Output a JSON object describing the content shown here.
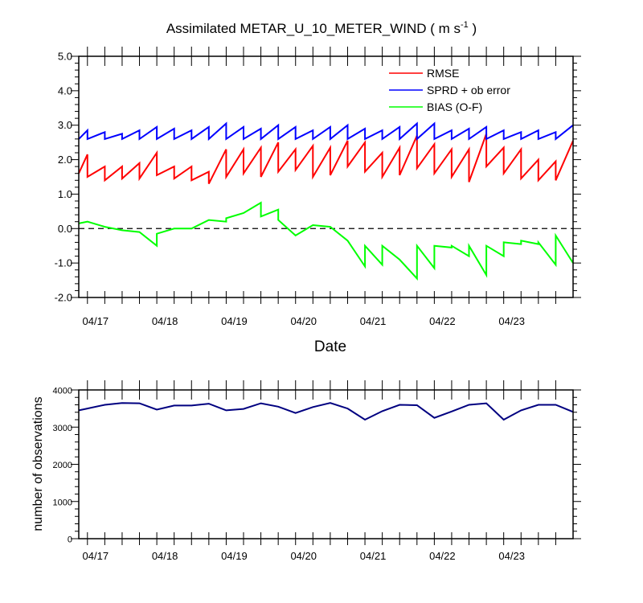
{
  "chart_data": [
    {
      "type": "line",
      "title": "Assimilated METAR_U_10_METER_WIND ( m s",
      "title_exponent": "-1",
      "title_close": " )",
      "xlabel": "Date",
      "ylabel": "",
      "ylim": [
        -2.0,
        5.0
      ],
      "yticks": [
        "5.0",
        "4.0",
        "3.0",
        "2.0",
        "1.0",
        "0.0",
        "-1.0",
        "-2.0"
      ],
      "ytick_values": [
        5,
        4,
        3,
        2,
        1,
        0,
        -1,
        -2
      ],
      "xticks": [
        "04/17",
        "04/18",
        "04/19",
        "04/20",
        "04/21",
        "04/22",
        "04/23"
      ],
      "xtick_values": [
        0,
        4,
        8,
        12,
        16,
        20,
        24
      ],
      "xlim": [
        -0.5,
        28
      ],
      "zero_line": "dashed",
      "legend_position": "top-right",
      "series": [
        {
          "name": "RMSE",
          "color": "#ff0000",
          "x": [
            -0.5,
            0,
            0,
            1,
            1,
            2,
            2,
            3,
            3,
            4,
            4,
            5,
            5,
            6,
            6,
            7,
            7,
            8,
            8,
            9,
            9,
            10,
            10,
            11,
            11,
            12,
            12,
            13,
            13,
            14,
            14,
            15,
            15,
            16,
            16,
            17,
            17,
            18,
            18,
            19,
            19,
            20,
            20,
            21,
            21,
            22,
            22,
            23,
            23,
            24,
            24,
            25,
            25,
            26,
            26,
            27,
            27,
            28
          ],
          "y": [
            1.6,
            2.15,
            1.5,
            1.8,
            1.4,
            1.8,
            1.45,
            1.9,
            1.45,
            2.2,
            1.55,
            1.8,
            1.45,
            1.8,
            1.4,
            1.65,
            1.3,
            2.3,
            1.5,
            2.3,
            1.6,
            2.35,
            1.5,
            2.5,
            1.65,
            2.3,
            1.7,
            2.4,
            1.5,
            2.35,
            1.55,
            2.55,
            1.8,
            2.5,
            1.65,
            2.2,
            1.5,
            2.35,
            1.55,
            2.7,
            1.75,
            2.45,
            1.6,
            2.3,
            1.5,
            2.3,
            1.35,
            2.75,
            1.8,
            2.35,
            1.6,
            2.3,
            1.45,
            2.0,
            1.4,
            1.95,
            1.4,
            2.55
          ]
        },
        {
          "name": "SPRD + ob error",
          "color": "#0000ff",
          "x": [
            -0.5,
            0,
            0,
            1,
            1,
            2,
            2,
            3,
            3,
            4,
            4,
            5,
            5,
            6,
            6,
            7,
            7,
            8,
            8,
            9,
            9,
            10,
            10,
            11,
            11,
            12,
            12,
            13,
            13,
            14,
            14,
            15,
            15,
            16,
            16,
            17,
            17,
            18,
            18,
            19,
            19,
            20,
            20,
            21,
            21,
            22,
            22,
            23,
            23,
            24,
            24,
            25,
            25,
            26,
            26,
            27,
            27,
            28
          ],
          "y": [
            2.6,
            2.85,
            2.6,
            2.8,
            2.6,
            2.75,
            2.6,
            2.85,
            2.6,
            2.95,
            2.6,
            2.9,
            2.6,
            2.85,
            2.6,
            2.95,
            2.6,
            3.05,
            2.6,
            2.95,
            2.6,
            2.9,
            2.6,
            3.0,
            2.6,
            2.95,
            2.6,
            2.85,
            2.6,
            2.95,
            2.6,
            3.0,
            2.6,
            2.9,
            2.6,
            2.85,
            2.6,
            2.95,
            2.6,
            3.05,
            2.6,
            3.05,
            2.6,
            2.85,
            2.6,
            2.9,
            2.6,
            2.95,
            2.6,
            2.85,
            2.6,
            2.8,
            2.6,
            2.85,
            2.6,
            2.8,
            2.6,
            3.0
          ]
        },
        {
          "name": "BIAS (O-F)",
          "color": "#00ff00",
          "x": [
            -0.5,
            0,
            1,
            2,
            3,
            4,
            4,
            5,
            6,
            7,
            8,
            8,
            9,
            10,
            10,
            11,
            11,
            12,
            13,
            14,
            15,
            16,
            16,
            17,
            17,
            18,
            19,
            19,
            20,
            20,
            21,
            21,
            22,
            22,
            23,
            23,
            24,
            24,
            25,
            25,
            26,
            26,
            27,
            27,
            28
          ],
          "y": [
            0.15,
            0.2,
            0.05,
            -0.05,
            -0.1,
            -0.5,
            -0.15,
            0.0,
            0.0,
            0.25,
            0.2,
            0.3,
            0.45,
            0.75,
            0.35,
            0.55,
            0.25,
            -0.2,
            0.1,
            0.05,
            -0.35,
            -1.1,
            -0.5,
            -1.05,
            -0.5,
            -0.9,
            -1.45,
            -0.5,
            -1.15,
            -0.5,
            -0.55,
            -0.5,
            -0.8,
            -0.5,
            -1.35,
            -0.5,
            -0.8,
            -0.4,
            -0.45,
            -0.35,
            -0.45,
            -0.4,
            -1.05,
            -0.2,
            -1.0
          ]
        }
      ]
    },
    {
      "type": "line",
      "title": "",
      "xlabel": "",
      "ylabel": "number of observations",
      "ylim": [
        0,
        4000
      ],
      "yticks": [
        "4000",
        "3000",
        "2000",
        "1000",
        "0"
      ],
      "ytick_values": [
        4000,
        3000,
        2000,
        1000,
        0
      ],
      "xticks": [
        "04/17",
        "04/18",
        "04/19",
        "04/20",
        "04/21",
        "04/22",
        "04/23"
      ],
      "xtick_values": [
        0,
        4,
        8,
        12,
        16,
        20,
        24
      ],
      "xlim": [
        -0.5,
        28
      ],
      "series": [
        {
          "name": "",
          "color": "#000080",
          "x": [
            -0.5,
            0,
            1,
            2,
            3,
            4,
            5,
            6,
            7,
            8,
            9,
            10,
            11,
            12,
            13,
            14,
            15,
            16,
            17,
            18,
            19,
            20,
            21,
            22,
            23,
            24,
            25,
            26,
            27,
            28
          ],
          "y": [
            3450,
            3500,
            3600,
            3650,
            3640,
            3470,
            3580,
            3580,
            3630,
            3450,
            3490,
            3640,
            3550,
            3380,
            3540,
            3650,
            3500,
            3200,
            3430,
            3600,
            3590,
            3250,
            3420,
            3600,
            3640,
            3200,
            3450,
            3600,
            3600,
            3410
          ]
        }
      ]
    }
  ]
}
